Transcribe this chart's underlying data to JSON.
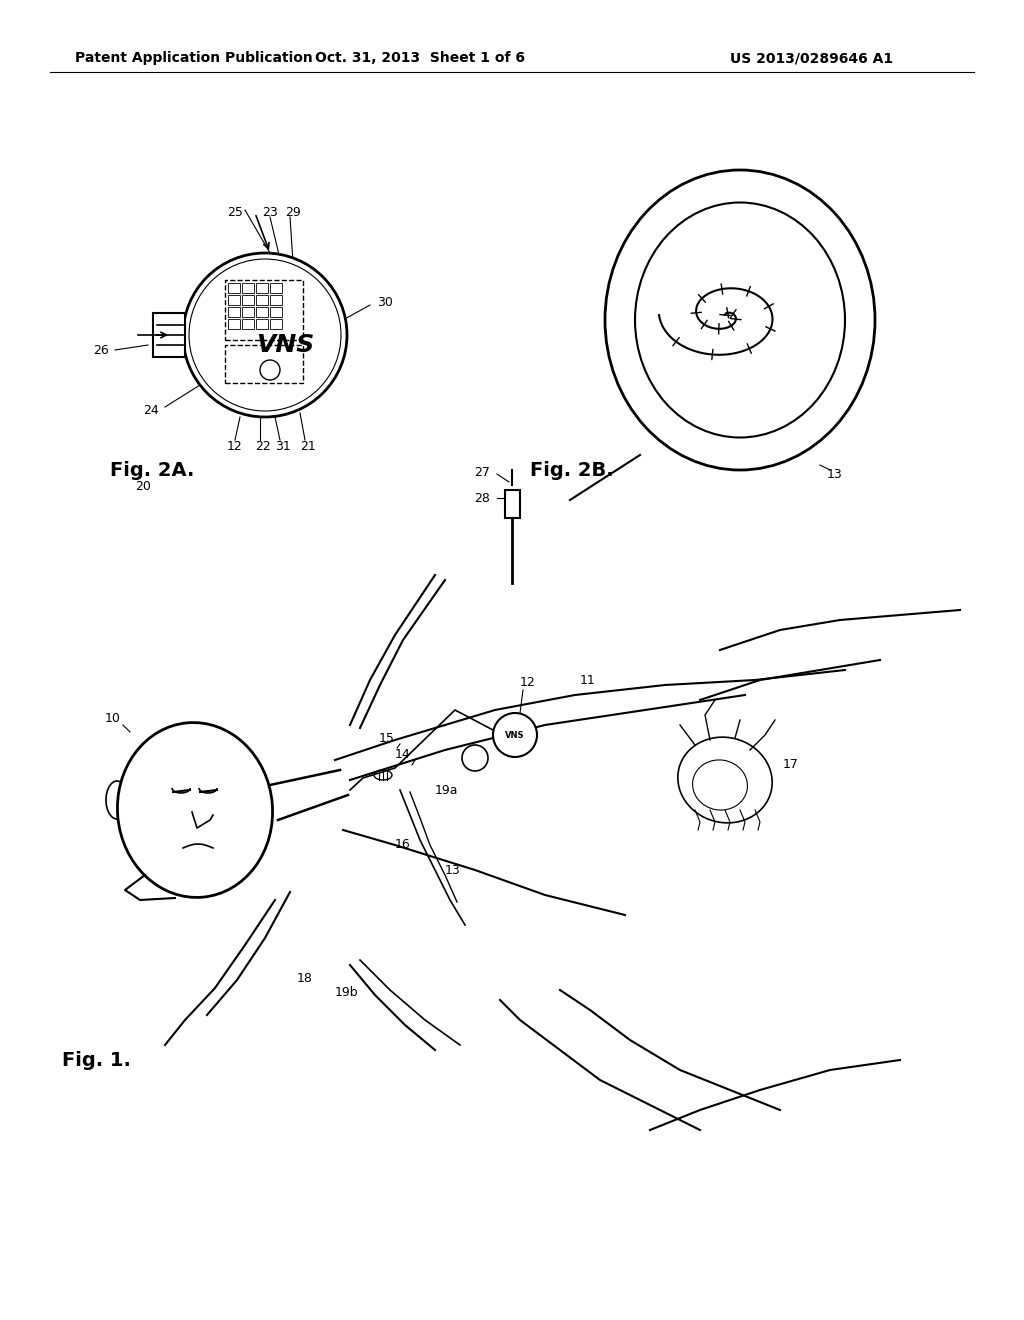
{
  "bg_color": "#ffffff",
  "header_left": "Patent Application Publication",
  "header_mid": "Oct. 31, 2013  Sheet 1 of 6",
  "header_right": "US 2013/0289646 A1",
  "fig1_label": "Fig. 1.",
  "fig2a_label": "Fig. 2A.",
  "fig2b_label": "Fig. 2B.",
  "fig_label_fontsize": 14,
  "ref_fontsize": 9,
  "header_fontsize": 10
}
